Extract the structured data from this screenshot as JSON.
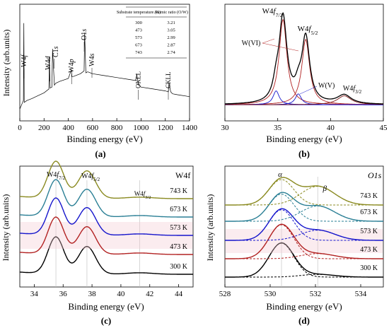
{
  "colors": {
    "black": "#000000",
    "red": "#b22222",
    "blue": "#1515cc",
    "teal": "#2a7f95",
    "olive": "#8a8a20",
    "pink": "#f4c8d2",
    "grey": "#555555",
    "darkred": "#7a1515"
  },
  "panels": {
    "a": {
      "label": "(a)",
      "xlabel": "Binding energy (eV)",
      "ylabel": "Intensity (arb.units)"
    },
    "b": {
      "label": "(b)",
      "xlabel": "Binding energy (eV)",
      "ylabel": ""
    },
    "c": {
      "label": "(c)",
      "xlabel": "Binding energy (eV)",
      "ylabel": "Intensity (arb.units)",
      "corner": "W4f"
    },
    "d": {
      "label": "(d)",
      "xlabel": "Binding energy (eV)",
      "ylabel": "Intensity (arb.units)",
      "corner": "O1s"
    }
  },
  "chart_data": [
    {
      "id": "a",
      "type": "line",
      "xlabel": "Binding energy (eV)",
      "ylabel": "Intensity (arb.units)",
      "xlim": [
        0,
        1400
      ],
      "xticks": [
        0,
        200,
        400,
        600,
        800,
        1000,
        1200,
        1400
      ],
      "x": [
        0,
        30,
        33,
        36,
        60,
        100,
        150,
        200,
        240,
        244,
        250,
        265,
        270,
        285,
        295,
        330,
        400,
        425,
        430,
        440,
        500,
        530,
        535,
        545,
        560,
        600,
        700,
        800,
        900,
        955,
        965,
        980,
        990,
        1000,
        1100,
        1200,
        1225,
        1230,
        1245,
        1260,
        1300,
        1400
      ],
      "y": [
        0.05,
        0.14,
        0.95,
        0.12,
        0.14,
        0.16,
        0.19,
        0.22,
        0.26,
        0.6,
        0.27,
        0.28,
        0.68,
        0.3,
        0.32,
        0.34,
        0.37,
        0.46,
        0.39,
        0.39,
        0.42,
        0.45,
        0.85,
        0.43,
        0.44,
        0.42,
        0.4,
        0.38,
        0.36,
        0.35,
        0.41,
        0.3,
        0.29,
        0.28,
        0.26,
        0.24,
        0.23,
        0.32,
        0.23,
        0.21,
        0.2,
        0.18
      ],
      "peak_labels": [
        {
          "text": "W4f",
          "x": 35
        },
        {
          "text": "W4d",
          "x": 246
        },
        {
          "text": "C1s",
          "x": 285
        },
        {
          "text": "W4p",
          "x": 427
        },
        {
          "text": "O1s",
          "x": 531
        },
        {
          "text": "W4s",
          "x": 595
        },
        {
          "text": "OKLL",
          "x": 978
        },
        {
          "text": "CKLL",
          "x": 1225
        }
      ],
      "inset_table": {
        "headers": [
          "Substrate temperature (K)",
          "Atomic ratio (O/W)"
        ],
        "rows": [
          [
            "300",
            "3.21"
          ],
          [
            "473",
            "3.05"
          ],
          [
            "573",
            "2.99"
          ],
          [
            "673",
            "2.87"
          ],
          [
            "743",
            "2.74"
          ]
        ]
      }
    },
    {
      "id": "b",
      "type": "line",
      "xlabel": "Binding energy (eV)",
      "xlim": [
        30,
        45
      ],
      "xticks": [
        30,
        35,
        40,
        45
      ],
      "baseline": 0.02,
      "components": [
        {
          "name": "W(VI)",
          "color": "red",
          "peaks": [
            [
              35.5,
              0.86,
              0.45
            ],
            [
              37.65,
              0.66,
              0.45
            ]
          ]
        },
        {
          "name": "W(V)",
          "color": "blue",
          "peaks": [
            [
              34.85,
              0.14,
              0.35
            ],
            [
              36.95,
              0.11,
              0.35
            ]
          ]
        },
        {
          "name": "W4f3/2",
          "color": "darkred",
          "peaks": [
            [
              41.3,
              0.09,
              0.8
            ]
          ]
        }
      ],
      "labels": {
        "w4f72": "W4f7/2",
        "w4f52": "W4f5/2",
        "wvi": "W(VI)",
        "wv": "W(V)",
        "w4f32": "W4f3/2"
      }
    },
    {
      "id": "c",
      "type": "line",
      "xlabel": "Binding energy (eV)",
      "xlim": [
        33,
        45
      ],
      "xticks": [
        34,
        36,
        38,
        40,
        42,
        44
      ],
      "peak_positions": [
        35.5,
        37.65
      ],
      "labels": {
        "w4f72": "W4f7/2",
        "w4f52": "W4f5/2",
        "w4f32": "W4f3/2"
      },
      "series": [
        {
          "name": "300 K",
          "color": "black",
          "peak1": 1.0,
          "peak2": 0.75
        },
        {
          "name": "473 K",
          "color": "red",
          "peak1": 1.0,
          "peak2": 0.75
        },
        {
          "name": "573 K",
          "color": "blue",
          "peak1": 1.0,
          "peak2": 0.75
        },
        {
          "name": "673 K",
          "color": "teal",
          "peak1": 1.0,
          "peak2": 0.75
        },
        {
          "name": "743 K",
          "color": "olive",
          "peak1": 1.0,
          "peak2": 0.75
        }
      ]
    },
    {
      "id": "d",
      "type": "line",
      "xlabel": "Binding energy (eV)",
      "xlim": [
        528,
        535
      ],
      "xticks": [
        528,
        530,
        532,
        534
      ],
      "labels": {
        "alpha": "α",
        "beta": "β"
      },
      "alpha_position": 530.5,
      "beta_position": 532.1,
      "series": [
        {
          "name": "300 K",
          "color": "black",
          "alpha": 1.0,
          "beta": 0.08
        },
        {
          "name": "473 K",
          "color": "red",
          "alpha": 1.0,
          "beta": 0.15
        },
        {
          "name": "573 K",
          "color": "blue",
          "alpha": 0.9,
          "beta": 0.3
        },
        {
          "name": "673 K",
          "color": "teal",
          "alpha": 0.8,
          "beta": 0.45
        },
        {
          "name": "743 K",
          "color": "olive",
          "alpha": 0.75,
          "beta": 0.55
        }
      ]
    }
  ]
}
